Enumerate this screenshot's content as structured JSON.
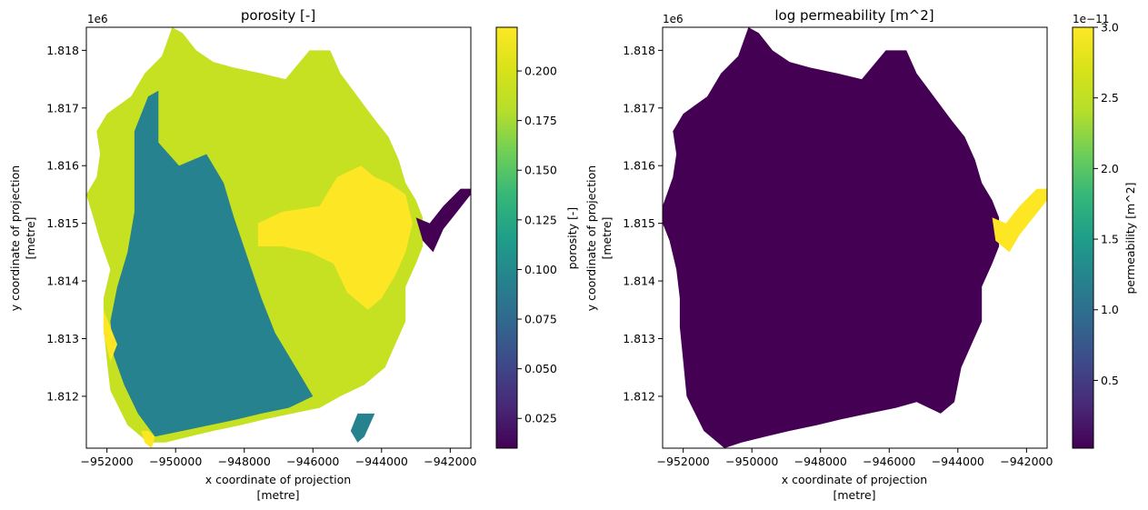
{
  "chart_data": [
    {
      "type": "heatmap",
      "title": "porosity [-]",
      "xlabel": "x coordinate of projection",
      "xlabel_unit": "[metre]",
      "ylabel": "y coordinate of projection",
      "ylabel_unit": "[metre]",
      "y_offset_label": "1e6",
      "xlim": [
        -952600,
        -941400
      ],
      "ylim": [
        1811100,
        1818400
      ],
      "xticks": [
        -952000,
        -950000,
        -948000,
        -946000,
        -944000,
        -942000
      ],
      "xtick_labels": [
        "−952000",
        "−950000",
        "−948000",
        "−946000",
        "−944000",
        "−942000"
      ],
      "yticks": [
        1.812,
        1.813,
        1.814,
        1.815,
        1.816,
        1.817,
        1.818
      ],
      "ytick_labels": [
        "1.812",
        "1.813",
        "1.814",
        "1.815",
        "1.816",
        "1.817",
        "1.818"
      ],
      "colormap": "viridis",
      "colorbar": {
        "label": "porosity [-]",
        "vmin": 0.01,
        "vmax": 0.222,
        "ticks": [
          0.025,
          0.05,
          0.075,
          0.1,
          0.125,
          0.15,
          0.175,
          0.2
        ],
        "tick_labels": [
          "0.025",
          "0.050",
          "0.075",
          "0.100",
          "0.125",
          "0.150",
          "0.175",
          "0.200"
        ]
      },
      "zones": [
        {
          "value": 0.19,
          "polygon": [
            [
              -952600,
              1815500
            ],
            [
              -952300,
              1815800
            ],
            [
              -952200,
              1816200
            ],
            [
              -952300,
              1816600
            ],
            [
              -952000,
              1816900
            ],
            [
              -951300,
              1817200
            ],
            [
              -950900,
              1817600
            ],
            [
              -950400,
              1817900
            ],
            [
              -950100,
              1818400
            ],
            [
              -949800,
              1818300
            ],
            [
              -949400,
              1818000
            ],
            [
              -948900,
              1817800
            ],
            [
              -948300,
              1817700
            ],
            [
              -947500,
              1817600
            ],
            [
              -946800,
              1817500
            ],
            [
              -946100,
              1818000
            ],
            [
              -945500,
              1818000
            ],
            [
              -945200,
              1817600
            ],
            [
              -944700,
              1817200
            ],
            [
              -944200,
              1816800
            ],
            [
              -943800,
              1816500
            ],
            [
              -943500,
              1816100
            ],
            [
              -943300,
              1815700
            ],
            [
              -943000,
              1815400
            ],
            [
              -942800,
              1815100
            ],
            [
              -942800,
              1814600
            ],
            [
              -943000,
              1814300
            ],
            [
              -943300,
              1813900
            ],
            [
              -943300,
              1813300
            ],
            [
              -943600,
              1812900
            ],
            [
              -943900,
              1812500
            ],
            [
              -944500,
              1812200
            ],
            [
              -945200,
              1812000
            ],
            [
              -945800,
              1811800
            ],
            [
              -946600,
              1811700
            ],
            [
              -947400,
              1811600
            ],
            [
              -948100,
              1811500
            ],
            [
              -948900,
              1811400
            ],
            [
              -949600,
              1811300
            ],
            [
              -950300,
              1811200
            ],
            [
              -950800,
              1811200
            ],
            [
              -951400,
              1811500
            ],
            [
              -951900,
              1812100
            ],
            [
              -952000,
              1812600
            ],
            [
              -952100,
              1813200
            ],
            [
              -952100,
              1813700
            ],
            [
              -951900,
              1814200
            ],
            [
              -952200,
              1814700
            ],
            [
              -952400,
              1815100
            ]
          ]
        },
        {
          "value": 0.095,
          "polygon": [
            [
              -951200,
              1816600
            ],
            [
              -950800,
              1817200
            ],
            [
              -950500,
              1817300
            ],
            [
              -950500,
              1816400
            ],
            [
              -949900,
              1816000
            ],
            [
              -949100,
              1816200
            ],
            [
              -948600,
              1815700
            ],
            [
              -948300,
              1815100
            ],
            [
              -947900,
              1814400
            ],
            [
              -947500,
              1813700
            ],
            [
              -947100,
              1813100
            ],
            [
              -946400,
              1812400
            ],
            [
              -946000,
              1812000
            ],
            [
              -946700,
              1811800
            ],
            [
              -947500,
              1811700
            ],
            [
              -948200,
              1811600
            ],
            [
              -949000,
              1811500
            ],
            [
              -949800,
              1811400
            ],
            [
              -950600,
              1811300
            ],
            [
              -951100,
              1811700
            ],
            [
              -951500,
              1812200
            ],
            [
              -951800,
              1812700
            ],
            [
              -951900,
              1813300
            ],
            [
              -951700,
              1813900
            ],
            [
              -951400,
              1814500
            ],
            [
              -951200,
              1815200
            ],
            [
              -951200,
              1815900
            ]
          ]
        },
        {
          "value": 0.222,
          "polygon": [
            [
              -945800,
              1815300
            ],
            [
              -945300,
              1815800
            ],
            [
              -944600,
              1816000
            ],
            [
              -944200,
              1815800
            ],
            [
              -943800,
              1815700
            ],
            [
              -943300,
              1815500
            ],
            [
              -943100,
              1815000
            ],
            [
              -943300,
              1814500
            ],
            [
              -943600,
              1814100
            ],
            [
              -944000,
              1813700
            ],
            [
              -944400,
              1813500
            ],
            [
              -945000,
              1813800
            ],
            [
              -945400,
              1814300
            ],
            [
              -946100,
              1814500
            ],
            [
              -946900,
              1814600
            ],
            [
              -947600,
              1814600
            ],
            [
              -947600,
              1815000
            ],
            [
              -946900,
              1815200
            ]
          ]
        },
        {
          "value": 0.222,
          "polygon": [
            [
              -952100,
              1813500
            ],
            [
              -951900,
              1813200
            ],
            [
              -951700,
              1812900
            ],
            [
              -951900,
              1812600
            ],
            [
              -952100,
              1813100
            ]
          ]
        },
        {
          "value": 0.222,
          "polygon": [
            [
              -950900,
              1811200
            ],
            [
              -950700,
              1811100
            ],
            [
              -950600,
              1811300
            ],
            [
              -950800,
              1811400
            ],
            [
              -951000,
              1811400
            ]
          ]
        },
        {
          "value": 0.01,
          "polygon": [
            [
              -943000,
              1815100
            ],
            [
              -942600,
              1815000
            ],
            [
              -942200,
              1815300
            ],
            [
              -941700,
              1815600
            ],
            [
              -941400,
              1815600
            ],
            [
              -941400,
              1815500
            ],
            [
              -941800,
              1815200
            ],
            [
              -942200,
              1814900
            ],
            [
              -942500,
              1814500
            ],
            [
              -942800,
              1814700
            ]
          ]
        },
        {
          "value": 0.095,
          "polygon": [
            [
              -944700,
              1811700
            ],
            [
              -944200,
              1811700
            ],
            [
              -944500,
              1811300
            ],
            [
              -944700,
              1811200
            ],
            [
              -944900,
              1811400
            ]
          ]
        }
      ]
    },
    {
      "type": "heatmap",
      "title": "log permeability [m^2]",
      "xlabel": "x coordinate of projection",
      "xlabel_unit": "[metre]",
      "ylabel": "y coordinate of projection",
      "ylabel_unit": "[metre]",
      "y_offset_label": "1e6",
      "xlim": [
        -952600,
        -941400
      ],
      "ylim": [
        1811100,
        1818400
      ],
      "xticks": [
        -952000,
        -950000,
        -948000,
        -946000,
        -944000,
        -942000
      ],
      "xtick_labels": [
        "−952000",
        "−950000",
        "−948000",
        "−946000",
        "−944000",
        "−942000"
      ],
      "yticks": [
        1.812,
        1.813,
        1.814,
        1.815,
        1.816,
        1.817,
        1.818
      ],
      "ytick_labels": [
        "1.812",
        "1.813",
        "1.814",
        "1.815",
        "1.816",
        "1.817",
        "1.818"
      ],
      "colormap": "viridis",
      "colorbar": {
        "label": "permeability [m^2]",
        "offset_label": "1e−11",
        "vmin": 0.02,
        "vmax": 3.0,
        "ticks": [
          0.5,
          1.0,
          1.5,
          2.0,
          2.5,
          3.0
        ],
        "tick_labels": [
          "0.5",
          "1.0",
          "1.5",
          "2.0",
          "2.5",
          "3.0"
        ]
      },
      "zones": [
        {
          "value": 0.02,
          "polygon": [
            [
              -952600,
              1815300
            ],
            [
              -952300,
              1815800
            ],
            [
              -952200,
              1816200
            ],
            [
              -952300,
              1816600
            ],
            [
              -952000,
              1816900
            ],
            [
              -951300,
              1817200
            ],
            [
              -950900,
              1817600
            ],
            [
              -950400,
              1817900
            ],
            [
              -950100,
              1818400
            ],
            [
              -949800,
              1818300
            ],
            [
              -949400,
              1818000
            ],
            [
              -948900,
              1817800
            ],
            [
              -948300,
              1817700
            ],
            [
              -947500,
              1817600
            ],
            [
              -946800,
              1817500
            ],
            [
              -946100,
              1818000
            ],
            [
              -945500,
              1818000
            ],
            [
              -945200,
              1817600
            ],
            [
              -944700,
              1817200
            ],
            [
              -944200,
              1816800
            ],
            [
              -943800,
              1816500
            ],
            [
              -943500,
              1816100
            ],
            [
              -943300,
              1815700
            ],
            [
              -943000,
              1815400
            ],
            [
              -942800,
              1815100
            ],
            [
              -942800,
              1814600
            ],
            [
              -943000,
              1814300
            ],
            [
              -943300,
              1813900
            ],
            [
              -943300,
              1813300
            ],
            [
              -943600,
              1812900
            ],
            [
              -943900,
              1812500
            ],
            [
              -944100,
              1811900
            ],
            [
              -944500,
              1811700
            ],
            [
              -945200,
              1811900
            ],
            [
              -945800,
              1811800
            ],
            [
              -946600,
              1811700
            ],
            [
              -947400,
              1811600
            ],
            [
              -948100,
              1811500
            ],
            [
              -948900,
              1811400
            ],
            [
              -949600,
              1811300
            ],
            [
              -950300,
              1811200
            ],
            [
              -950800,
              1811100
            ],
            [
              -951400,
              1811400
            ],
            [
              -951900,
              1812000
            ],
            [
              -952000,
              1812600
            ],
            [
              -952100,
              1813200
            ],
            [
              -952100,
              1813700
            ],
            [
              -952200,
              1814200
            ],
            [
              -952400,
              1814700
            ],
            [
              -952600,
              1815000
            ]
          ]
        },
        {
          "value": 3.0,
          "polygon": [
            [
              -943000,
              1815100
            ],
            [
              -942600,
              1815000
            ],
            [
              -942200,
              1815300
            ],
            [
              -941700,
              1815600
            ],
            [
              -941400,
              1815600
            ],
            [
              -941400,
              1815400
            ],
            [
              -941800,
              1815100
            ],
            [
              -942200,
              1814800
            ],
            [
              -942500,
              1814500
            ],
            [
              -942900,
              1814700
            ]
          ]
        }
      ]
    }
  ]
}
